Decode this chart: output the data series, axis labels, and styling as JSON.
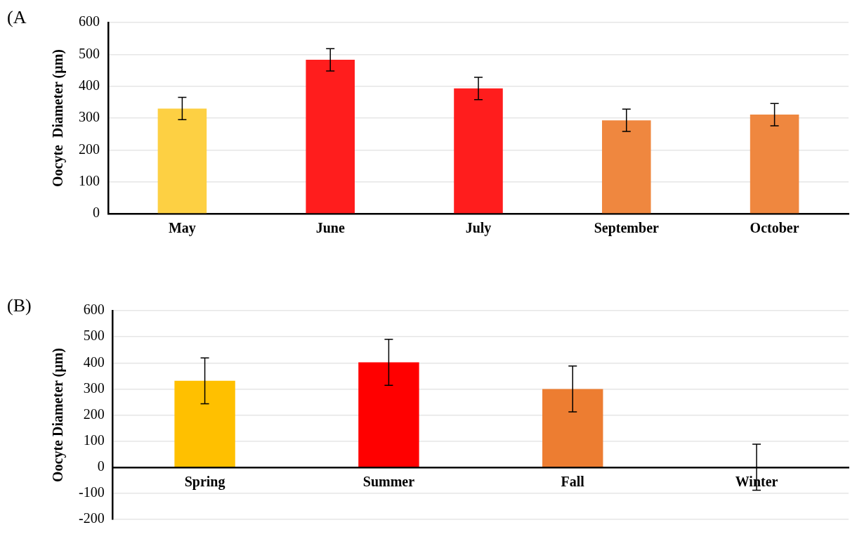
{
  "chart_data": [
    {
      "type": "bar",
      "annotations": [
        "(A"
      ],
      "ylabel": "Oocyte  Diameter (µm)",
      "categories": [
        "May",
        "June",
        "July",
        "September",
        "October"
      ],
      "values": [
        330,
        483,
        393,
        293,
        311
      ],
      "errors": [
        35,
        35,
        35,
        35,
        35
      ],
      "colors": [
        "#fdd043",
        "#ff1d1d",
        "#ff1d1d",
        "#ef873f",
        "#ef873f"
      ],
      "ylim": [
        0,
        600
      ],
      "yticks": [
        0,
        100,
        200,
        300,
        400,
        500,
        600
      ],
      "grid": "y"
    },
    {
      "type": "bar",
      "annotations": [
        "(B)"
      ],
      "ylabel": "Oocyte Diameter (µm)",
      "categories": [
        "Spring",
        "Summer",
        "Fall",
        "Winter"
      ],
      "values": [
        331,
        402,
        300,
        0
      ],
      "errors": [
        88,
        88,
        88,
        88
      ],
      "colors": [
        "#ffc000",
        "#ff0000",
        "#ed7d31",
        "#a5a5a5"
      ],
      "ylim": [
        -200,
        600
      ],
      "yticks": [
        -200,
        -100,
        0,
        100,
        200,
        300,
        400,
        500,
        600
      ],
      "grid": "y"
    }
  ]
}
